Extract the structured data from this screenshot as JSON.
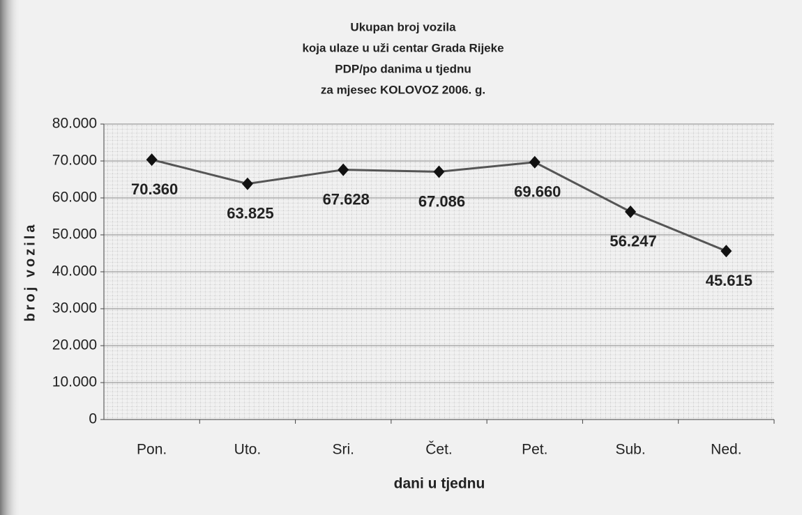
{
  "chart_data": {
    "type": "line",
    "title": [
      "Ukupan broj vozila",
      "koja ulaze u uži centar Grada Rijeke",
      "PDP/po danima u tjednu",
      "za mjesec KOLOVOZ 2006. g."
    ],
    "x_label": "dani u tjednu",
    "y_label": "broj vozila",
    "categories": [
      "Pon.",
      "Uto.",
      "Sri.",
      "Čet.",
      "Pet.",
      "Sub.",
      "Ned."
    ],
    "series": [
      {
        "color": "#555555",
        "values": [
          70360,
          63825,
          67628,
          67086,
          69660,
          56247,
          45615
        ],
        "value_labels": [
          "70.360",
          "63.825",
          "67.628",
          "67.086",
          "69.660",
          "56.247",
          "45.615"
        ]
      }
    ],
    "ylim": [
      0,
      80000
    ],
    "yticks": [
      0,
      {
        "value": 10000,
        "label": "10.000"
      },
      {
        "value": 20000,
        "label": "20.000"
      },
      {
        "value": 30000,
        "label": "30.000"
      },
      {
        "value": 40000,
        "label": "40.000"
      },
      {
        "value": 50000,
        "label": "50.000"
      },
      {
        "value": 60000,
        "label": "60.000"
      },
      {
        "value": 70000,
        "label": "70.000"
      },
      {
        "value": 80000,
        "label": "80.000"
      }
    ],
    "grid": true
  }
}
